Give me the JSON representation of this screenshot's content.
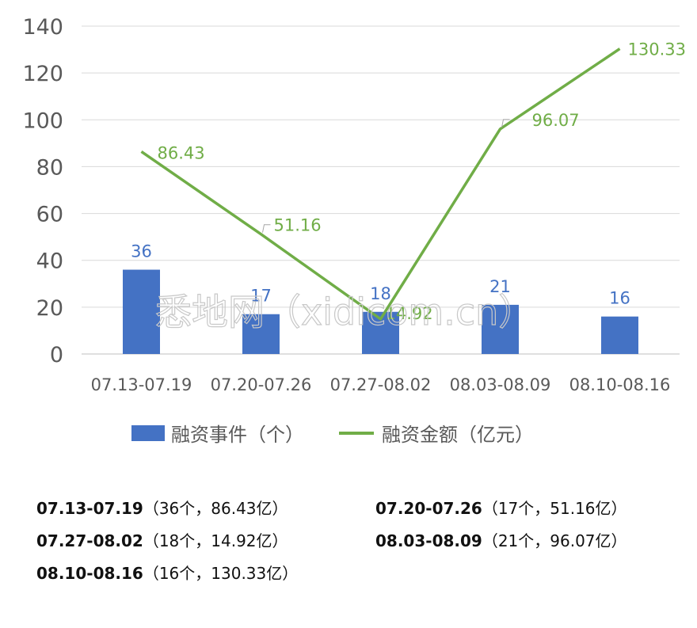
{
  "chart_data": {
    "type": "bar",
    "categories": [
      "07.13-07.19",
      "07.20-07.26",
      "07.27-08.02",
      "08.03-08.09",
      "08.10-08.16"
    ],
    "series": [
      {
        "name": "融资事件（个）",
        "kind": "bar",
        "values": [
          36,
          17,
          18,
          21,
          16
        ],
        "color": "#4472c4"
      },
      {
        "name": "融资金额（亿元）",
        "kind": "line",
        "values": [
          86.43,
          51.16,
          14.92,
          96.07,
          130.33
        ],
        "color": "#70ad47"
      }
    ],
    "y_ticks": [
      "0",
      "20",
      "40",
      "60",
      "80",
      "100",
      "120",
      "140"
    ],
    "ylim": [
      0,
      140
    ],
    "bar_labels": [
      "36",
      "17",
      "18",
      "21",
      "16"
    ],
    "line_labels": [
      "86.43",
      "51.16",
      "14.92",
      "96.07",
      "130.33"
    ],
    "grid": true,
    "legend_position": "bottom"
  },
  "watermark": "悉地网（xidicom.cn）",
  "summary": [
    {
      "period": "07.13-07.19",
      "detail": "（36个，86.43亿）"
    },
    {
      "period": "07.20-07.26",
      "detail": "（17个，51.16亿）"
    },
    {
      "period": "07.27-08.02",
      "detail": "（18个，14.92亿）"
    },
    {
      "period": "08.03-08.09",
      "detail": "（21个，96.07亿）"
    },
    {
      "period": "08.10-08.16",
      "detail": "（16个，130.33亿）"
    }
  ]
}
